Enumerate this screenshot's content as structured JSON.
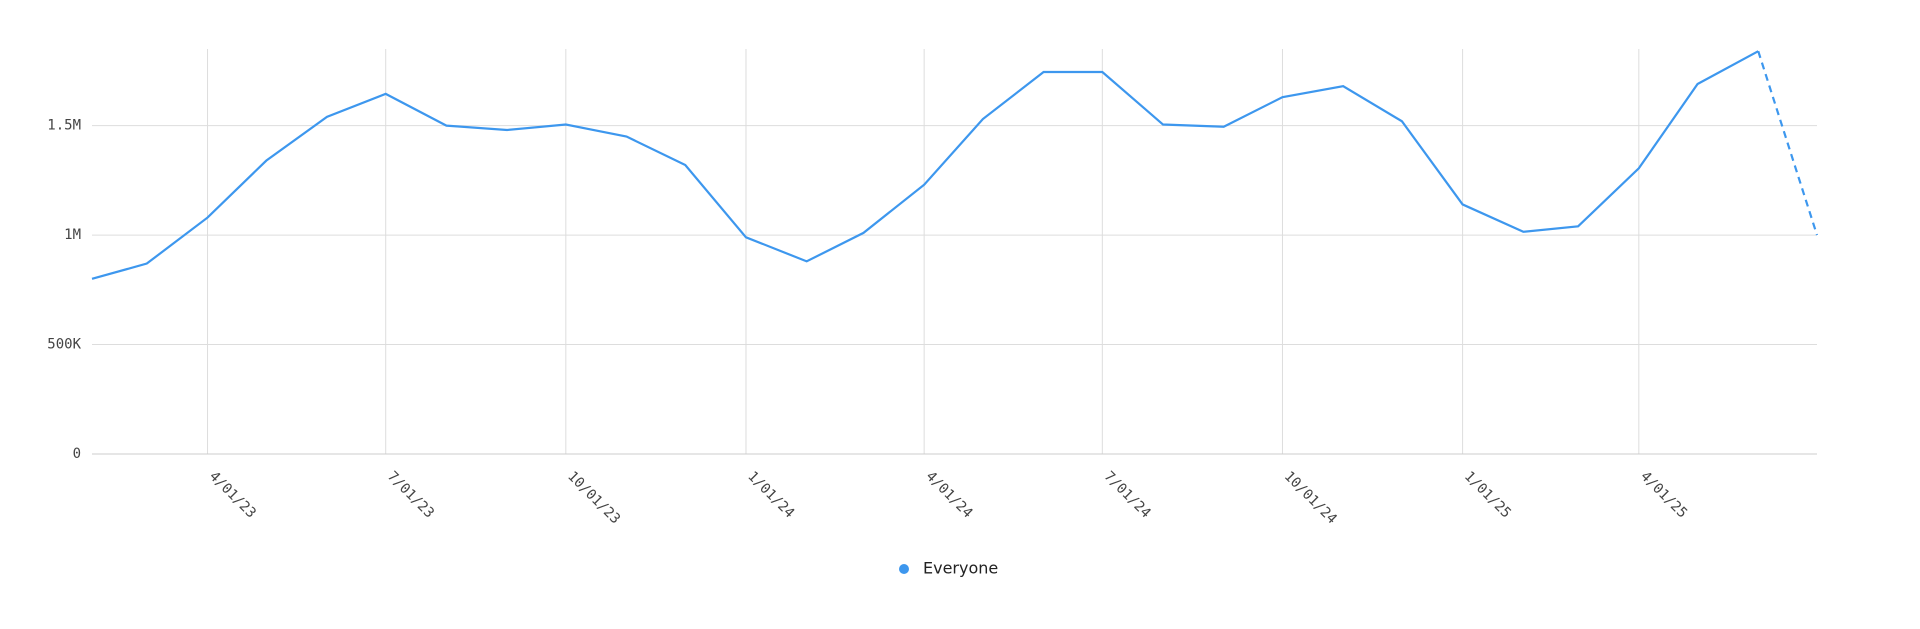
{
  "chart_data": {
    "type": "line",
    "x": [
      "2/01/23",
      "3/01/23",
      "4/01/23",
      "5/01/23",
      "6/01/23",
      "7/01/23",
      "8/01/23",
      "9/01/23",
      "10/01/23",
      "11/01/23",
      "12/01/23",
      "1/01/24",
      "2/01/24",
      "3/01/24",
      "4/01/24",
      "5/01/24",
      "6/01/24",
      "7/01/24",
      "8/01/24",
      "9/01/24",
      "10/01/24",
      "11/01/24",
      "12/01/24",
      "1/01/25",
      "2/01/25",
      "3/01/25",
      "4/01/25",
      "5/01/25",
      "6/01/25",
      "7/01/25"
    ],
    "series": [
      {
        "name": "Everyone",
        "color": "#3d97ee",
        "values": [
          800000,
          870000,
          1080000,
          1340000,
          1540000,
          1645000,
          1500000,
          1480000,
          1505000,
          1450000,
          1320000,
          990000,
          880000,
          1010000,
          1230000,
          1530000,
          1745000,
          1745000,
          1505000,
          1495000,
          1630000,
          1680000,
          1520000,
          1140000,
          1015000,
          1040000,
          1305000,
          1690000,
          1840000,
          1000000
        ]
      }
    ],
    "dashed_last_segment": true,
    "xlim": [
      "2/01/23",
      "7/01/25"
    ],
    "xticks": [
      "4/01/23",
      "7/01/23",
      "10/01/23",
      "1/01/24",
      "4/01/24",
      "7/01/24",
      "10/01/24",
      "1/01/25",
      "4/01/25"
    ],
    "ylim": [
      0,
      1850000
    ],
    "yticks": [
      0,
      {
        "value": 500000,
        "label": "500K"
      },
      {
        "value": 1000000,
        "label": "1M"
      },
      {
        "value": 1500000,
        "label": "1.5M"
      }
    ],
    "grid": true,
    "legend": "bottom"
  }
}
